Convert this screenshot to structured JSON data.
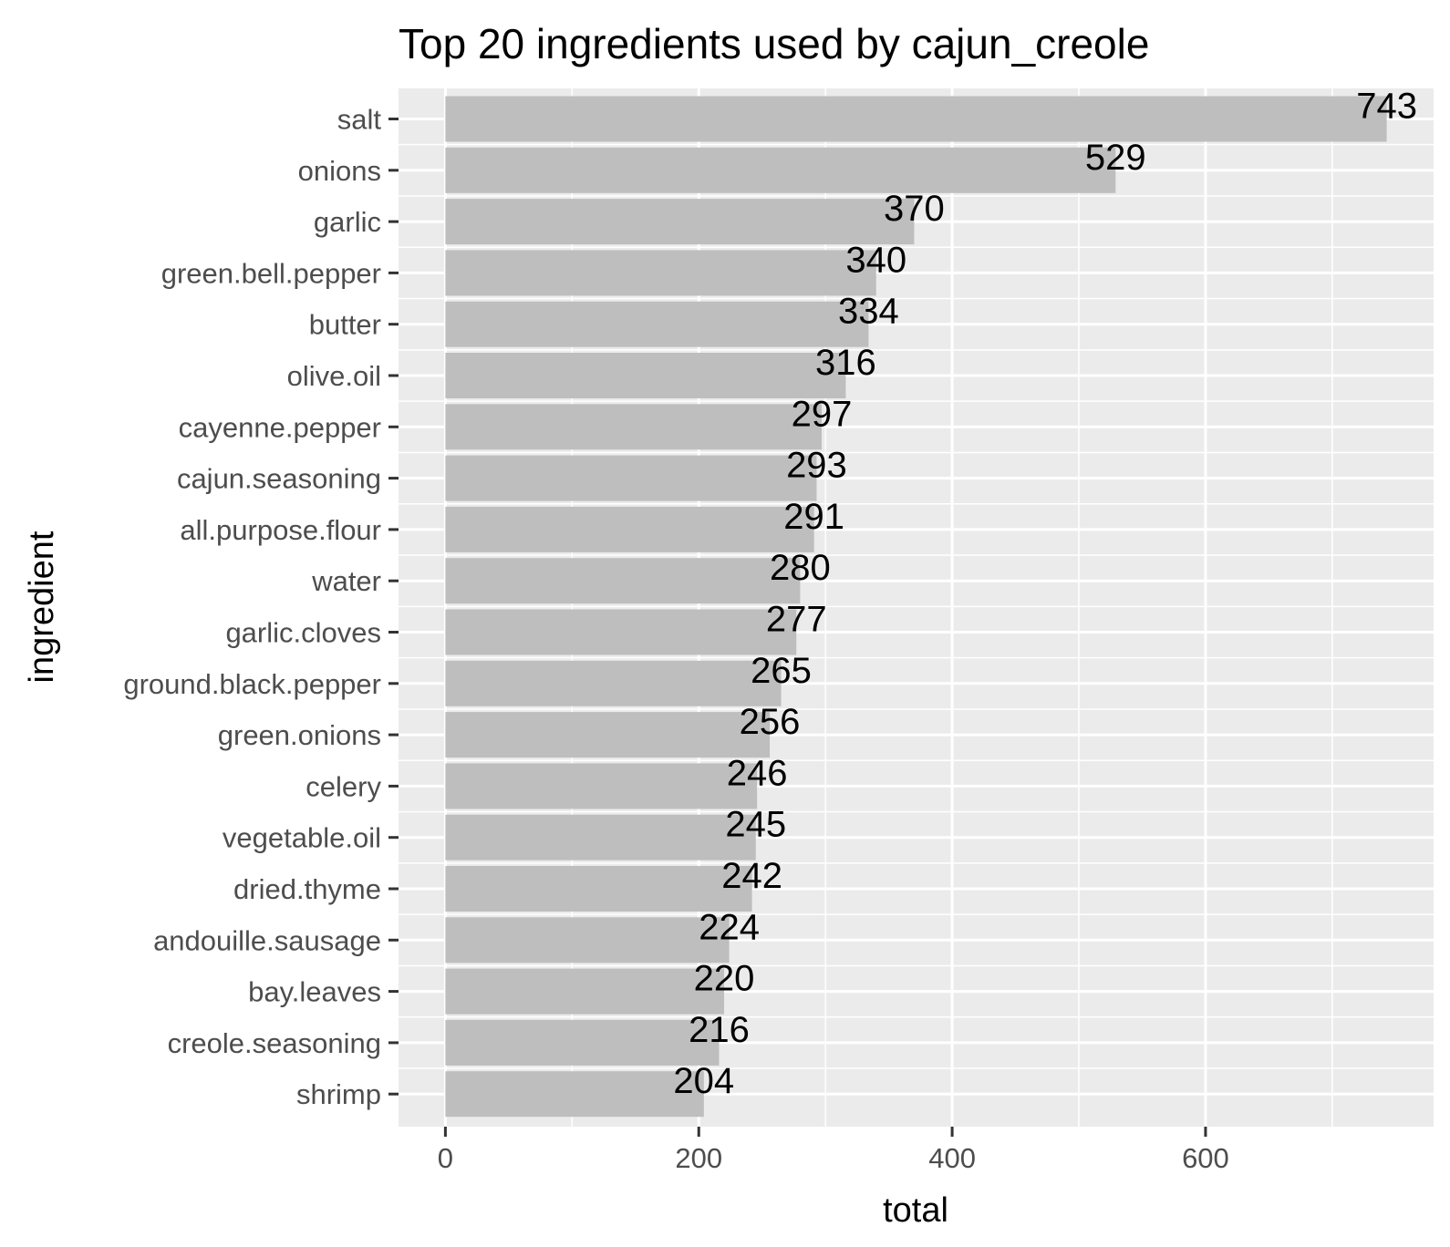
{
  "chart_data": {
    "type": "bar",
    "orientation": "horizontal",
    "title": "Top 20 ingredients used by cajun_creole",
    "xlabel": "total",
    "ylabel": "ingredient",
    "categories": [
      "salt",
      "onions",
      "garlic",
      "green.bell.pepper",
      "butter",
      "olive.oil",
      "cayenne.pepper",
      "cajun.seasoning",
      "all.purpose.flour",
      "water",
      "garlic.cloves",
      "ground.black.pepper",
      "green.onions",
      "celery",
      "vegetable.oil",
      "dried.thyme",
      "andouille.sausage",
      "bay.leaves",
      "creole.seasoning",
      "shrimp"
    ],
    "values": [
      743,
      529,
      370,
      340,
      334,
      316,
      297,
      293,
      291,
      280,
      277,
      265,
      256,
      246,
      245,
      242,
      224,
      220,
      216,
      204
    ],
    "data_labels": [
      "743",
      "529",
      "370",
      "340",
      "334",
      "316",
      "297",
      "293",
      "291",
      "280",
      "277",
      "265",
      "256",
      "246",
      "245",
      "242",
      "224",
      "220",
      "216",
      "204"
    ],
    "xlim": [
      -37,
      780
    ],
    "x_ticks": [
      0,
      200,
      400,
      600
    ],
    "x_tick_labels": [
      "0",
      "200",
      "400",
      "600"
    ],
    "x_minor_ticks": [
      100,
      300,
      500,
      700
    ],
    "grid": true,
    "legend": "none",
    "colors": {
      "bar": "#bebebe",
      "panel_background": "#ebebeb",
      "grid": "#ffffff",
      "tick_label": "#4d4d4d",
      "text": "#000000"
    }
  }
}
